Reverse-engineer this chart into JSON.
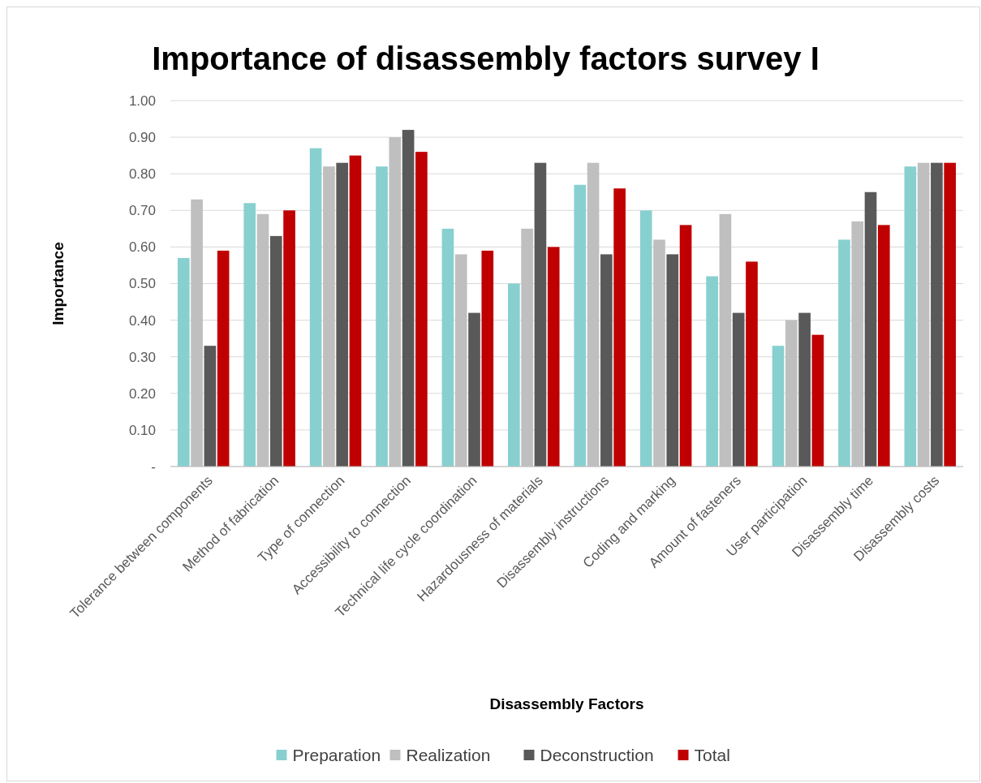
{
  "chart_data": {
    "type": "bar",
    "title": "Importance of disassembly factors survey I",
    "xlabel": "Disassembly Factors",
    "ylabel": "Importance",
    "categories": [
      "Tolerance between components",
      "Method of fabrication",
      "Type of connection",
      "Accessibility to connection",
      "Technical life cycle coordination",
      "Hazardousness of materials",
      "Disassembly instructions",
      "Coding and marking",
      "Amount of fasteners",
      "User participation",
      "Disassembly time",
      "Disassembly costs"
    ],
    "series": [
      {
        "name": "Preparation",
        "color": "#88d0d0",
        "values": [
          0.57,
          0.72,
          0.87,
          0.82,
          0.65,
          0.5,
          0.77,
          0.7,
          0.52,
          0.33,
          0.62,
          0.82
        ]
      },
      {
        "name": "Realization",
        "color": "#bfbfbf",
        "values": [
          0.73,
          0.69,
          0.82,
          0.9,
          0.58,
          0.65,
          0.83,
          0.62,
          0.69,
          0.4,
          0.67,
          0.83
        ]
      },
      {
        "name": "Deconstruction",
        "color": "#595959",
        "values": [
          0.33,
          0.63,
          0.83,
          0.92,
          0.42,
          0.83,
          0.58,
          0.58,
          0.42,
          0.42,
          0.75,
          0.83
        ]
      },
      {
        "name": "Total",
        "color": "#c00000",
        "values": [
          0.59,
          0.7,
          0.85,
          0.86,
          0.59,
          0.6,
          0.76,
          0.66,
          0.56,
          0.36,
          0.66,
          0.83
        ]
      }
    ],
    "ylim": [
      0,
      1
    ],
    "yticks": [
      {
        "value": 0,
        "label": "-"
      },
      {
        "value": 0.1,
        "label": "0.10"
      },
      {
        "value": 0.2,
        "label": "0.20"
      },
      {
        "value": 0.3,
        "label": "0.30"
      },
      {
        "value": 0.4,
        "label": "0.40"
      },
      {
        "value": 0.5,
        "label": "0.50"
      },
      {
        "value": 0.6,
        "label": "0.60"
      },
      {
        "value": 0.7,
        "label": "0.70"
      },
      {
        "value": 0.8,
        "label": "0.80"
      },
      {
        "value": 0.9,
        "label": "0.90"
      },
      {
        "value": 1,
        "label": "1.00"
      }
    ],
    "grid": "y",
    "legend": "bottom"
  }
}
